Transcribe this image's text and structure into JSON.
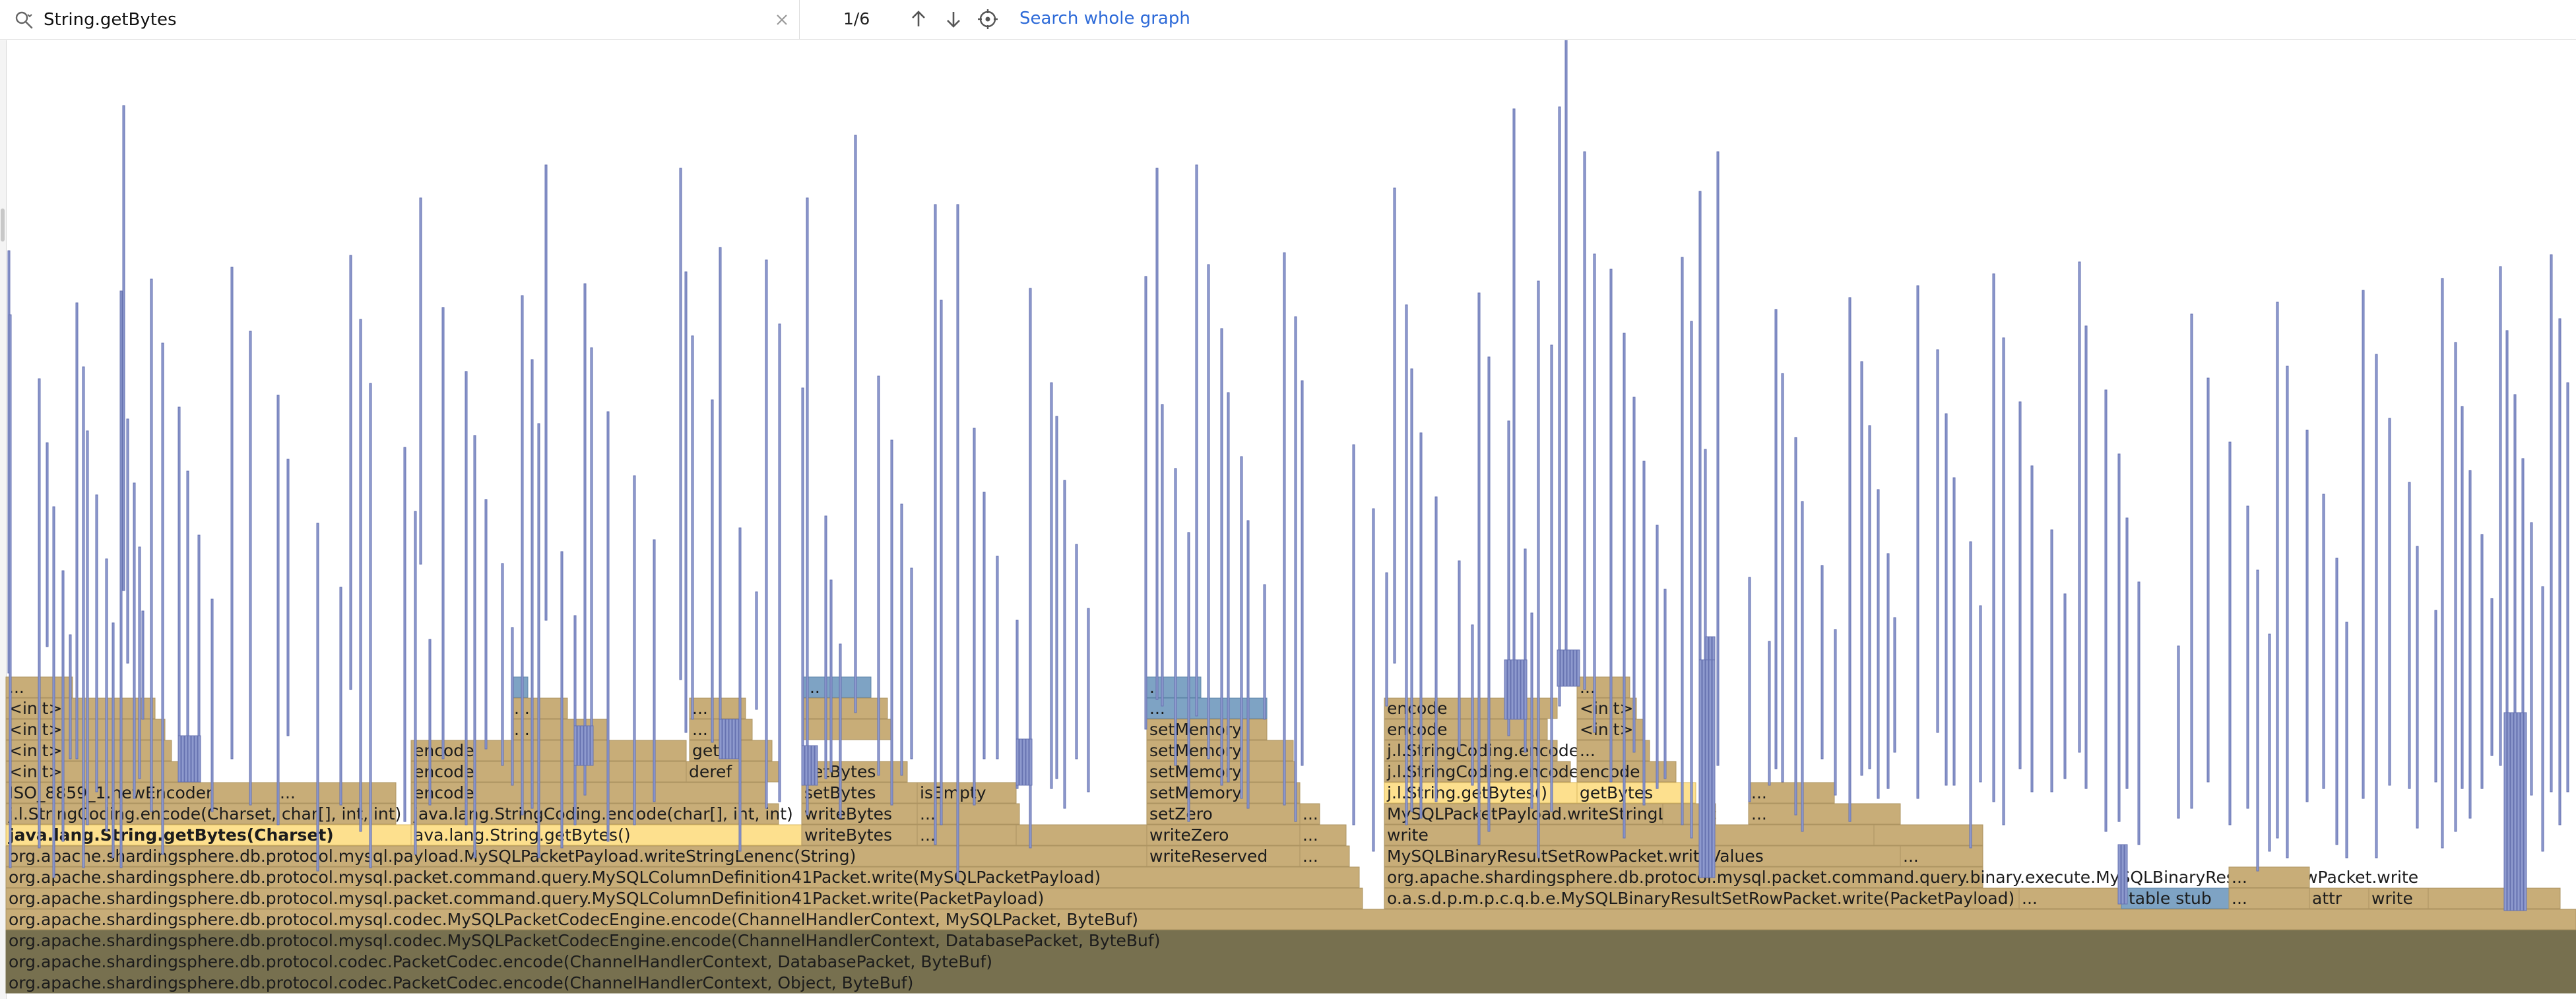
{
  "search": {
    "query": "String.getBytes",
    "match_counter": "1/6",
    "search_whole_graph_label": "Search whole graph"
  },
  "icons": {
    "search": "search-icon",
    "clear": "close-icon",
    "previous": "arrow-up-icon",
    "next": "arrow-down-icon",
    "center": "target-icon"
  },
  "colors": {
    "frame": "#c8ad78",
    "frame_border": "#ad9462",
    "frame_highlight": "#fde08e",
    "frame_selected_dark": "#8b7a55",
    "frame_dim": "#77704f",
    "native_frame": "#8e9ace",
    "native_frame_border": "#6672b0",
    "alt_frame": "#7ea3c4",
    "link": "#2d6ad8"
  },
  "stack_frames": {
    "root_1": "org.apache.shardingsphere.db.protocol.codec.PacketCodec.encode(ChannelHandlerContext, Object, ByteBuf)",
    "root_2": "org.apache.shardingsphere.db.protocol.codec.PacketCodec.encode(ChannelHandlerContext, DatabasePacket, ByteBuf)",
    "root_3": "org.apache.shardingsphere.db.protocol.mysql.codec.MySQLPacketCodecEngine.encode(ChannelHandlerContext, DatabasePacket, ByteBuf)",
    "root_4": "org.apache.shardingsphere.db.protocol.mysql.codec.MySQLPacketCodecEngine.encode(ChannelHandlerContext, MySQLPacket, ByteBuf)",
    "col41_write": "org.apache.shardingsphere.db.protocol.mysql.packet.command.query.MySQLColumnDefinition41Packet.write(PacketPayload)",
    "col41_write_payload": "org.apache.shardingsphere.db.protocol.mysql.packet.command.query.MySQLColumnDefinition41Packet.write(MySQLPacketPayload)",
    "write_string_lenenc": "org.apache.shardingsphere.db.protocol.mysql.payload.MySQLPacketPayload.writeStringLenenc(String)",
    "get_bytes_charset": "java.lang.String.getBytes(Charset)",
    "get_bytes_charset_short": "ava.lang.String.getBytes()",
    "string_coding_charset": "j.l.StringCoding.encode(Charset, char[], int, int)",
    "new_encoder": "ISO_8859_1.newEncoder",
    "init": "<init>",
    "string_coding_chararr": "java.lang.StringCoding.encode(char[], int, int)",
    "encode": "encode",
    "string_coding_full": "j.l.StringCoding.encode(String, char[], int, int)",
    "deref": "deref",
    "get": "get",
    "write_bytes": "writeBytes",
    "set_bytes": "setBytes",
    "is_empty": "isEmpty",
    "write_reserved": "writeReserved",
    "write_zero": "writeZero",
    "set_zero": "setZero",
    "set_memory": "setMemory",
    "binary_row_write": "o.a.s.d.p.m.p.c.q.b.e.MySQLBinaryResultSetRowPacket.write(PacketPayload)",
    "binary_row_write_full": "org.apache.shardingsphere.db.protocol.mysql.packet.command.query.binary.execute.MySQLBinaryResultSetRowPacket.write",
    "binary_row_write_values": "MySQLBinaryResultSetRowPacket.writeValues",
    "write": "write",
    "payload_write_string_lenenc": "MySQLPacketPayload.writeStringLenenc",
    "jl_string_get_bytes": "j.l.String.getBytes()",
    "get_bytes": "getBytes",
    "jl_string_coding_encode": "j.l.StringCoding.encode",
    "itable_stub": "itable stub",
    "attr": "attr",
    "ellipsis": "..."
  }
}
